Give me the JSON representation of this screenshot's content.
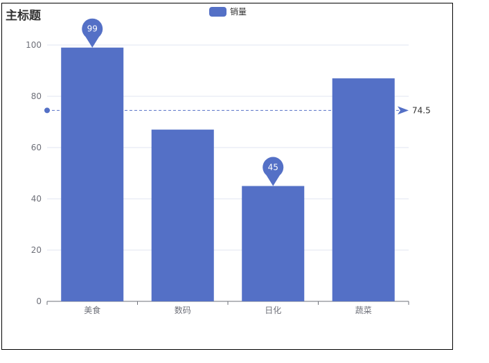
{
  "chart_data": {
    "type": "bar",
    "title": "主标题",
    "categories": [
      "美食",
      "数码",
      "日化",
      "蔬菜"
    ],
    "series": [
      {
        "name": "销量",
        "values": [
          99,
          67,
          45,
          87
        ]
      }
    ],
    "ylim": [
      0,
      100
    ],
    "yticks": [
      0,
      20,
      40,
      60,
      80,
      100
    ],
    "mark_points": [
      {
        "category": "美食",
        "value": 99,
        "label": "99"
      },
      {
        "category": "日化",
        "value": 45,
        "label": "45"
      }
    ],
    "mark_line": {
      "value": 74.5,
      "label": "74.5"
    },
    "grid": true,
    "legend_position": "top-center"
  },
  "colors": {
    "bar": "#5470c6",
    "axis": "#6e7079",
    "grid": "#e0e6f1",
    "text": "#6e7079"
  }
}
